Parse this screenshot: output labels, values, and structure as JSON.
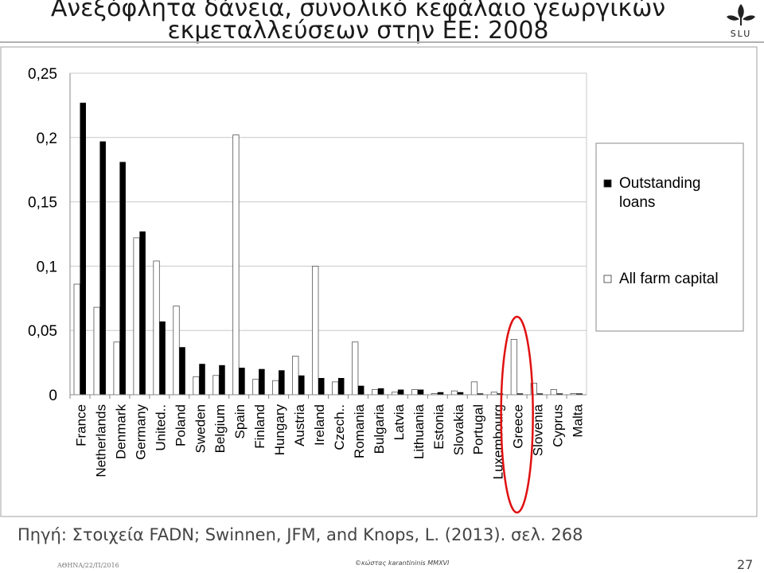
{
  "slide": {
    "title_line1": "Ανεξόφλητα δάνεια, συνολικό κεφάλαιο γεωργικών",
    "title_line2": "εκμεταλλεύσεων στην ΕΕ: 2008",
    "logo_text": "SLU",
    "source": "Πηγή: Στοιχεία FADN; Swinnen, JFM, and Knops, L. (2013). σελ. 268",
    "footer_left": "ΑΘΗΝΑ/22/Π/2016",
    "footer_center": "©κώστας karantininis MMXVI",
    "page_number": "27",
    "highlight_category": "Greece",
    "colors": {
      "highlight": "#e01010",
      "bar_dark": "#000000",
      "bar_light": "#ffffff",
      "frame": "#a0a0a0"
    }
  },
  "chart_data": {
    "type": "bar",
    "categories": [
      "France",
      "Netherlands",
      "Denmark",
      "Germany",
      "United..",
      "Poland",
      "Sweden",
      "Belgium",
      "Spain",
      "Finland",
      "Hungary",
      "Austria",
      "Ireland",
      "Czech..",
      "Romania",
      "Bulgaria",
      "Latvia",
      "Lithuania",
      "Estonia",
      "Slovakia",
      "Portugal",
      "Luxembourg",
      "Greece",
      "Slovenia",
      "Cyprus",
      "Malta"
    ],
    "series": [
      {
        "name": "All farm capital",
        "color": "#ffffff",
        "values": [
          0.086,
          0.068,
          0.041,
          0.122,
          0.104,
          0.069,
          0.014,
          0.015,
          0.202,
          0.012,
          0.011,
          0.03,
          0.1,
          0.01,
          0.041,
          0.004,
          0.002,
          0.004,
          0.001,
          0.003,
          0.01,
          0.002,
          0.043,
          0.009,
          0.004,
          0.001
        ]
      },
      {
        "name": "Outstanding loans",
        "color": "#000000",
        "values": [
          0.227,
          0.197,
          0.181,
          0.127,
          0.057,
          0.037,
          0.024,
          0.023,
          0.021,
          0.02,
          0.019,
          0.015,
          0.013,
          0.013,
          0.007,
          0.005,
          0.004,
          0.004,
          0.002,
          0.002,
          0.001,
          0.001,
          0.001,
          0.001,
          0.001,
          0.001
        ]
      }
    ],
    "legend_order": [
      "Outstanding loans",
      "All farm capital"
    ],
    "legend_placement": "right",
    "y_ticks": [
      "0",
      "0,05",
      "0,1",
      "0,15",
      "0,2",
      "0,25"
    ],
    "ylim": [
      0,
      0.25
    ],
    "grid": true,
    "title": "",
    "xlabel": "",
    "ylabel": ""
  }
}
